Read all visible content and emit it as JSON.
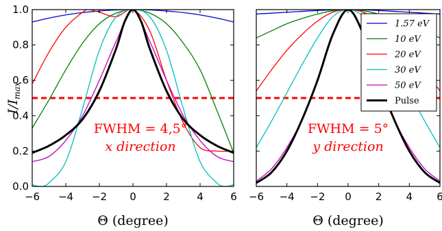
{
  "chart_data": [
    {
      "type": "line",
      "xlabel": "Θ (degree)",
      "ylabel": "I/I",
      "ylabel_sub": "max",
      "xlim": [
        -6,
        6
      ],
      "ylim": [
        0,
        1
      ],
      "xticks": [
        "−6",
        "−4",
        "−2",
        "0",
        "2",
        "4",
        "6"
      ],
      "yticks": [
        "0.0",
        "0.2",
        "0.4",
        "0.6",
        "0.8",
        "1.0"
      ],
      "reference_line": {
        "y": 0.5,
        "color": "#ff0000",
        "style": "dashed"
      },
      "annotation": [
        "FWHM = 4,5°",
        "x direction"
      ],
      "series": [
        {
          "name": "1.57 eV",
          "color": "#0000cc",
          "x": [
            -6,
            -5,
            -4,
            -3,
            -2,
            -1,
            0,
            1,
            2,
            3,
            4,
            5,
            6
          ],
          "y": [
            0.93,
            0.952,
            0.97,
            0.983,
            0.992,
            0.998,
            1.0,
            0.998,
            0.992,
            0.983,
            0.97,
            0.952,
            0.93
          ]
        },
        {
          "name": "10 eV",
          "color": "#008000",
          "x": [
            -6,
            -5,
            -4,
            -3,
            -2,
            -1,
            0,
            1,
            2,
            3,
            4,
            5,
            6
          ],
          "y": [
            0.33,
            0.49,
            0.66,
            0.81,
            0.92,
            0.98,
            1.0,
            0.98,
            0.92,
            0.81,
            0.66,
            0.43,
            0.19
          ]
        },
        {
          "name": "20 eV",
          "color": "#ff0000",
          "x": [
            -6,
            -5,
            -4,
            -3,
            -2.6,
            -2,
            -1,
            0,
            1,
            2,
            3,
            4,
            5,
            6
          ],
          "y": [
            0.58,
            0.76,
            0.9,
            0.985,
            1.0,
            0.985,
            0.96,
            1.0,
            0.88,
            0.6,
            0.36,
            0.22,
            0.2,
            0.2
          ]
        },
        {
          "name": "30 eV",
          "color": "#00bfbf",
          "x": [
            -6,
            -5.5,
            -5,
            -4,
            -3,
            -2,
            -1,
            0,
            1,
            2,
            3,
            4,
            5,
            5.5,
            6
          ],
          "y": [
            0.01,
            0.0,
            0.02,
            0.14,
            0.44,
            0.77,
            0.96,
            1.0,
            0.96,
            0.77,
            0.44,
            0.14,
            0.02,
            0.0,
            0.01
          ]
        },
        {
          "name": "50 eV",
          "color": "#bf00bf",
          "x": [
            -6,
            -5,
            -4,
            -3,
            -2,
            -1,
            0,
            1,
            2,
            3,
            4,
            5,
            6
          ],
          "y": [
            0.14,
            0.17,
            0.26,
            0.4,
            0.6,
            0.82,
            1.0,
            0.82,
            0.6,
            0.4,
            0.26,
            0.17,
            0.14
          ]
        },
        {
          "name": "Pulse",
          "color": "#000000",
          "x": [
            -6,
            -5,
            -4,
            -3,
            -2,
            -1,
            -0.5,
            0,
            0.5,
            1,
            2,
            3,
            4,
            5,
            6
          ],
          "y": [
            0.19,
            0.23,
            0.29,
            0.38,
            0.54,
            0.78,
            0.93,
            1.0,
            0.93,
            0.78,
            0.54,
            0.38,
            0.29,
            0.23,
            0.19
          ]
        }
      ]
    },
    {
      "type": "line",
      "xlabel": "Θ (degree)",
      "xlim": [
        -6,
        6
      ],
      "ylim": [
        0,
        1
      ],
      "xticks": [
        "−6",
        "−4",
        "−2",
        "0",
        "2",
        "4",
        "6"
      ],
      "reference_line": {
        "y": 0.5,
        "color": "#ff0000",
        "style": "dashed"
      },
      "annotation": [
        "FWHM = 5°",
        "y direction"
      ],
      "legend": {
        "position": "top-right",
        "entries": [
          "1.57 eV",
          "10 eV",
          "20 eV",
          "30 eV",
          "50 eV",
          "Pulse"
        ]
      },
      "series": [
        {
          "name": "1.57 eV",
          "color": "#0000cc",
          "x": [
            -6,
            -4,
            -2,
            0,
            2,
            4,
            6
          ],
          "y": [
            0.975,
            0.985,
            0.995,
            1.0,
            0.995,
            0.985,
            0.975
          ]
        },
        {
          "name": "10 eV",
          "color": "#008000",
          "x": [
            -6,
            -5,
            -4,
            -3,
            -2,
            -1,
            0,
            1,
            2,
            3,
            4,
            5,
            6
          ],
          "y": [
            0.84,
            0.88,
            0.92,
            0.95,
            0.975,
            0.993,
            1.0,
            0.993,
            0.975,
            0.95,
            0.92,
            0.88,
            0.84
          ]
        },
        {
          "name": "20 eV",
          "color": "#ff0000",
          "x": [
            -6,
            -5,
            -4,
            -3,
            -2,
            -1,
            0,
            1,
            2,
            3,
            4,
            5,
            6
          ],
          "y": [
            0.54,
            0.66,
            0.77,
            0.86,
            0.935,
            0.985,
            1.0,
            0.985,
            0.935,
            0.86,
            0.77,
            0.66,
            0.54
          ]
        },
        {
          "name": "30 eV",
          "color": "#00bfbf",
          "x": [
            -6,
            -5,
            -4,
            -3,
            -2,
            -1,
            0,
            1,
            2,
            3,
            4,
            5,
            6
          ],
          "y": [
            0.22,
            0.37,
            0.53,
            0.69,
            0.84,
            0.96,
            1.0,
            0.96,
            0.84,
            0.69,
            0.53,
            0.37,
            0.22
          ]
        },
        {
          "name": "50 eV",
          "color": "#bf00bf",
          "x": [
            -6,
            -5,
            -4,
            -3,
            -2,
            -1,
            0,
            1,
            2,
            3,
            4,
            5,
            6
          ],
          "y": [
            0.03,
            0.1,
            0.22,
            0.38,
            0.6,
            0.86,
            1.0,
            0.86,
            0.6,
            0.38,
            0.22,
            0.1,
            0.03
          ]
        },
        {
          "name": "Pulse",
          "color": "#000000",
          "x": [
            -6,
            -5,
            -4,
            -3,
            -2,
            -1,
            0,
            1,
            2,
            3,
            4,
            5,
            6
          ],
          "y": [
            0.02,
            0.08,
            0.2,
            0.38,
            0.6,
            0.86,
            1.0,
            0.86,
            0.6,
            0.38,
            0.2,
            0.08,
            0.02
          ]
        }
      ]
    }
  ]
}
